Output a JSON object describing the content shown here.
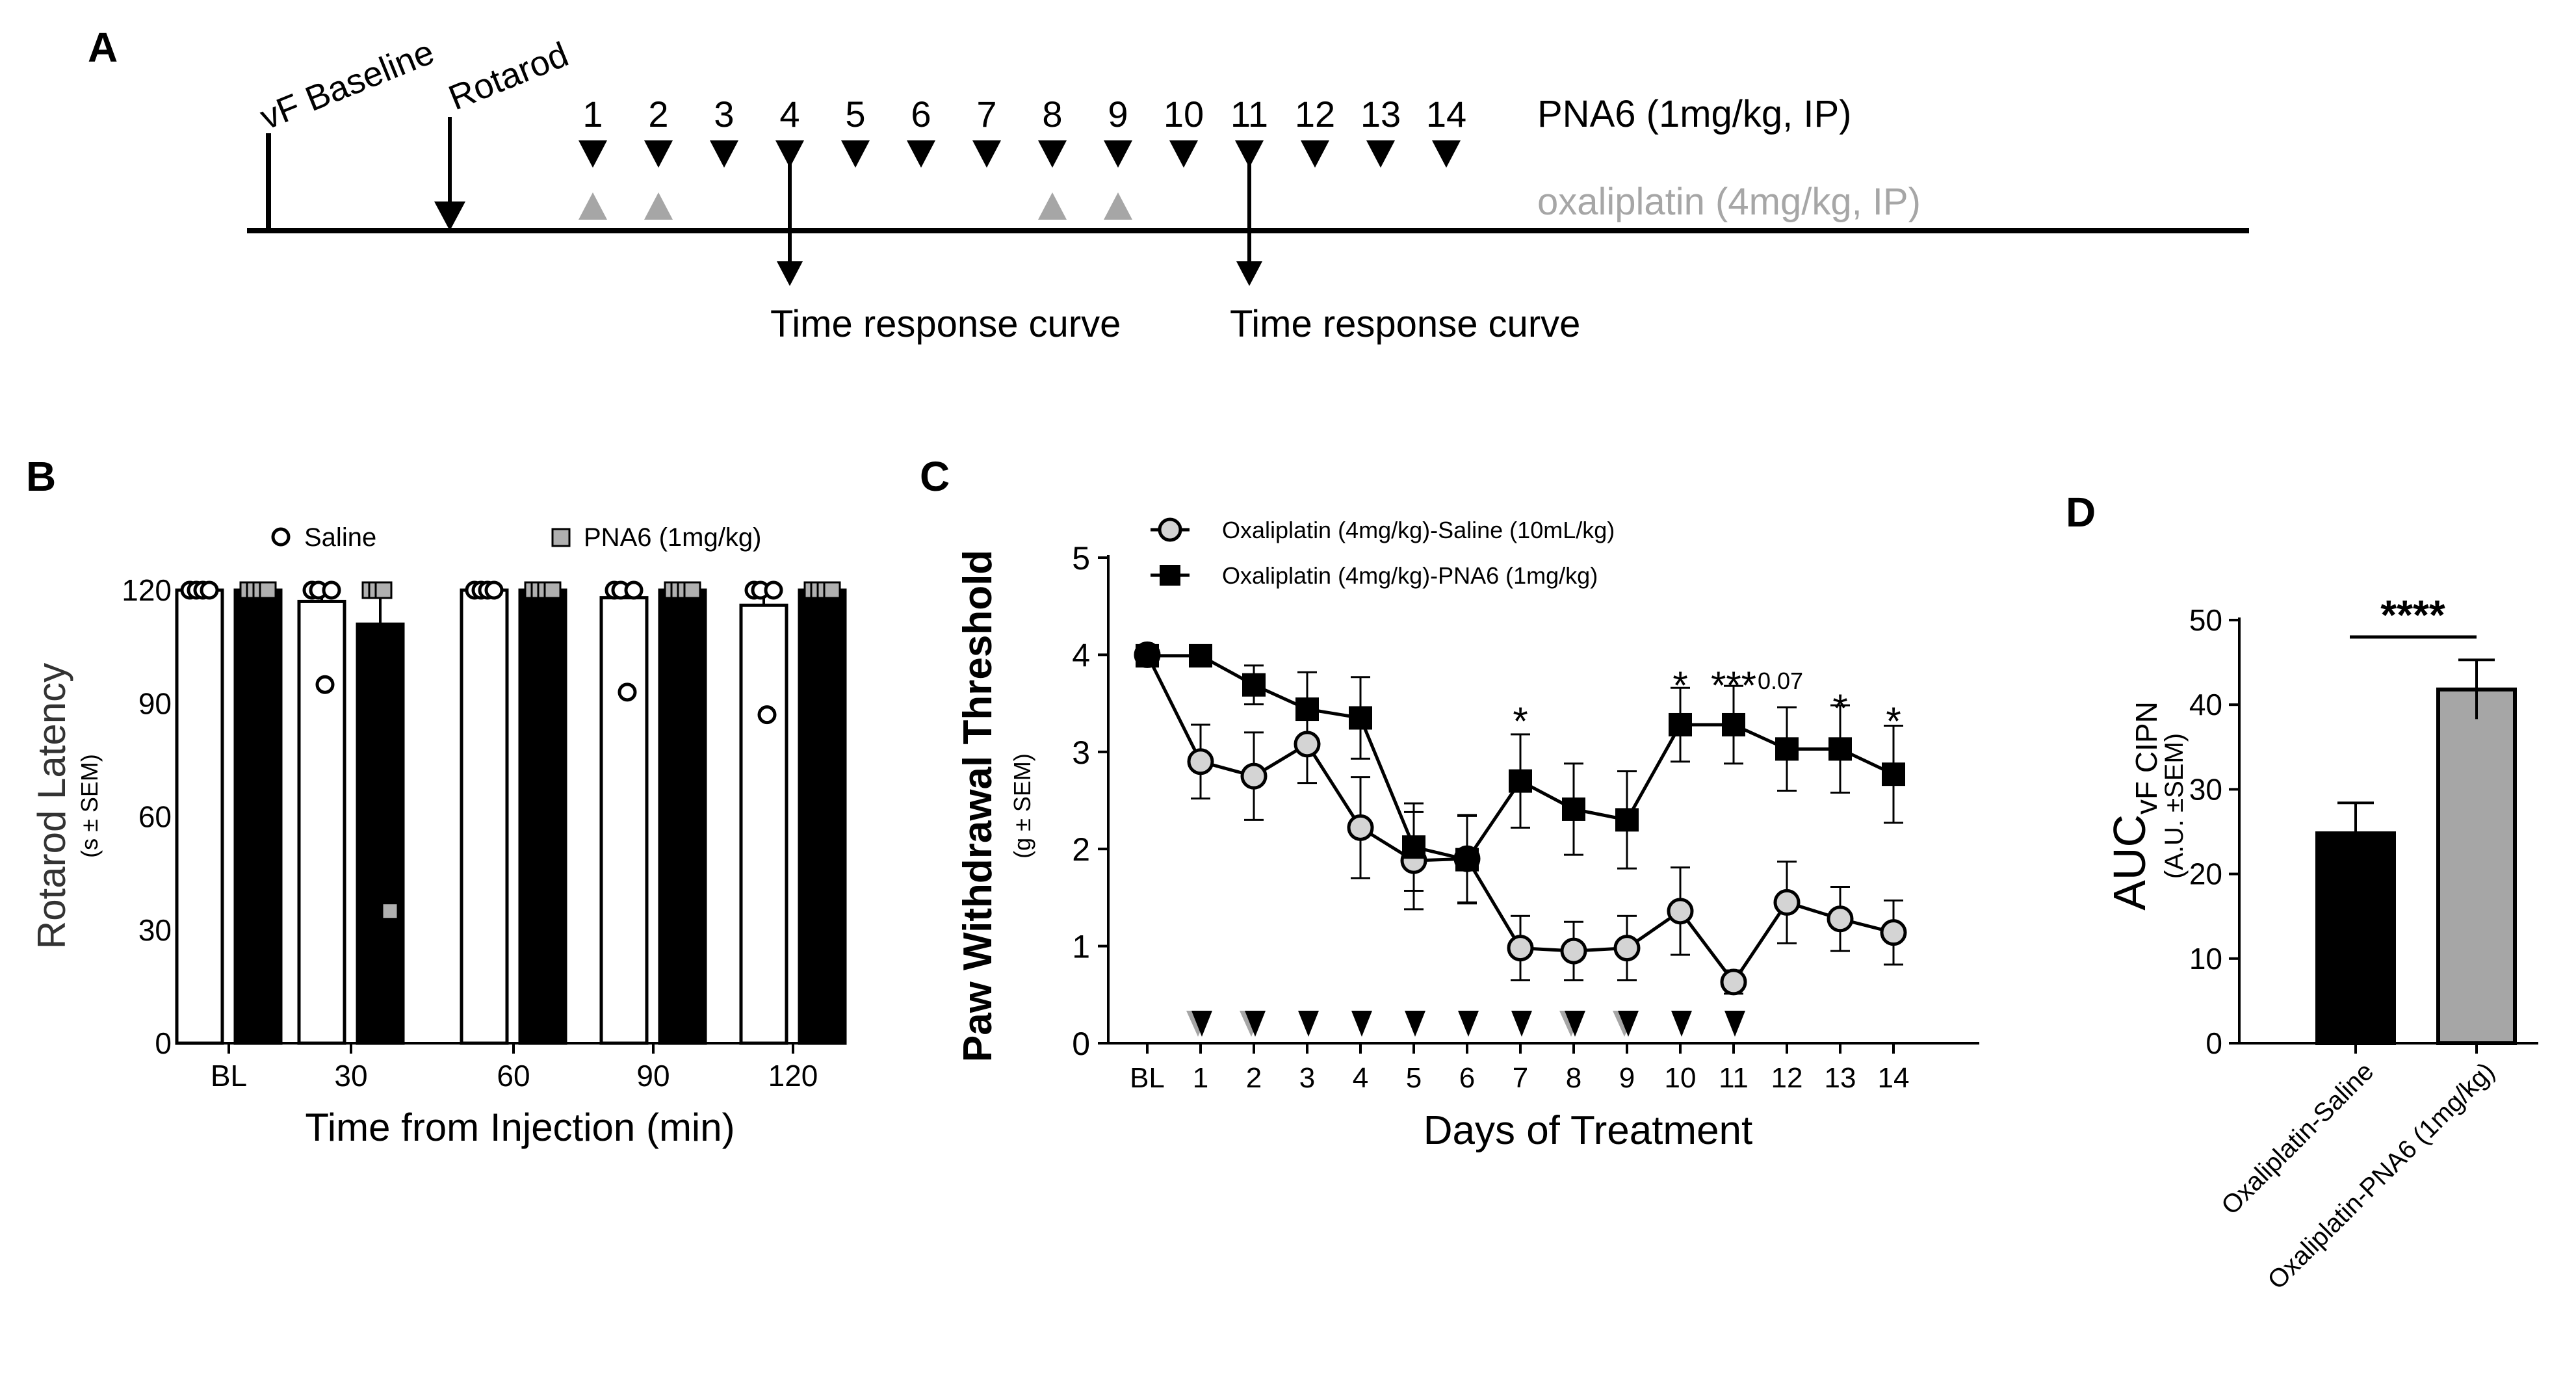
{
  "panel_a": {
    "letter": "A",
    "baseline_label": "vF Baseline",
    "rotarod_label": "Rotarod",
    "days": [
      "1",
      "2",
      "3",
      "4",
      "5",
      "6",
      "7",
      "8",
      "9",
      "10",
      "11",
      "12",
      "13",
      "14"
    ],
    "pna6_label": "PNA6 (1mg/kg, IP)",
    "oxali_label": "oxaliplatin (4mg/kg, IP)",
    "oxali_days": [
      1,
      2,
      8,
      9
    ],
    "trc_days": [
      4,
      11
    ],
    "trc_label": "Time response curve",
    "pna6_color": "#000000",
    "oxali_color": "#a6a6a6"
  },
  "chart_data": [
    {
      "panel": "B",
      "type": "bar",
      "ylabel": "Rotarod Latency",
      "ylabel_unit": "(s ± SEM)",
      "xlabel": "Time from Injection (min)",
      "categories": [
        "BL",
        "30",
        "60",
        "90",
        "120"
      ],
      "ylim": [
        0,
        120
      ],
      "yticks": [
        0,
        30,
        60,
        90,
        120
      ],
      "series": [
        {
          "name": "Saline",
          "values": [
            120,
            117,
            120,
            118,
            116
          ],
          "sem": [
            0,
            3,
            0,
            2,
            3
          ],
          "fill": "#ffffff",
          "points": [
            [
              120,
              120,
              120,
              120
            ],
            [
              120,
              120,
              95,
              120
            ],
            [
              120,
              120,
              120,
              120
            ],
            [
              120,
              120,
              93,
              120
            ],
            [
              120,
              120,
              87,
              120
            ]
          ]
        },
        {
          "name": "PNA6 (1mg/kg)",
          "values": [
            120,
            111,
            120,
            120,
            120
          ],
          "sem": [
            0,
            8,
            0,
            0,
            0
          ],
          "fill": "#000000",
          "points": [
            [
              120,
              120,
              120,
              120
            ],
            [
              120,
              120,
              120,
              35
            ],
            [
              120,
              120,
              120,
              120
            ],
            [
              120,
              120,
              120,
              120
            ],
            [
              120,
              120,
              120,
              120
            ]
          ]
        }
      ]
    },
    {
      "panel": "C",
      "type": "line",
      "ylabel": "Paw Withdrawal Threshold",
      "ylabel_unit": "(g ± SEM)",
      "xlabel": "Days of Treatment",
      "categories": [
        "BL",
        "1",
        "2",
        "3",
        "4",
        "5",
        "6",
        "7",
        "8",
        "9",
        "10",
        "11",
        "12",
        "13",
        "14"
      ],
      "ylim": [
        0,
        5
      ],
      "yticks": [
        0,
        1,
        2,
        3,
        4,
        5
      ],
      "series": [
        {
          "name": "Oxaliplatin  (4mg/kg)-Saline (10mL/kg)",
          "values": [
            4.0,
            2.9,
            2.75,
            3.08,
            2.22,
            1.88,
            1.9,
            0.98,
            0.95,
            0.98,
            1.36,
            0.63,
            1.45,
            1.28,
            1.14
          ],
          "sem": [
            0.05,
            0.38,
            0.45,
            0.4,
            0.52,
            0.5,
            0.45,
            0.33,
            0.3,
            0.33,
            0.45,
            0.12,
            0.42,
            0.33,
            0.33
          ]
        },
        {
          "name": "Oxaliplatin  (4mg/kg)-PNA6 (1mg/kg)",
          "values": [
            3.99,
            3.99,
            3.69,
            3.44,
            3.35,
            2.02,
            1.89,
            2.7,
            2.41,
            2.3,
            3.28,
            3.28,
            3.03,
            3.03,
            2.77
          ],
          "sem": [
            0.05,
            0.05,
            0.2,
            0.38,
            0.42,
            0.45,
            0.45,
            0.48,
            0.47,
            0.5,
            0.38,
            0.4,
            0.43,
            0.45,
            0.5
          ]
        }
      ],
      "annotations": [
        {
          "category": "7",
          "text": "*"
        },
        {
          "category": "10",
          "text": "*"
        },
        {
          "category": "11",
          "text": "***"
        },
        {
          "category": "12",
          "text": "0.07"
        },
        {
          "category": "13",
          "text": "*"
        },
        {
          "category": "14",
          "text": "*"
        }
      ],
      "dose_markers": {
        "black_days": [
          "1",
          "2",
          "3",
          "4",
          "5",
          "6",
          "7",
          "8",
          "9",
          "10",
          "11"
        ],
        "gray_days": [
          "1",
          "2",
          "8",
          "9"
        ]
      }
    },
    {
      "panel": "D",
      "type": "bar",
      "ylabel": "AUC",
      "ylabel_sub": "vF CIPN",
      "ylabel_unit": "(A.U. ±SEM)",
      "categories": [
        "Oxaliplatin-Saline",
        "Oxaliplatin-PNA6 (1mg/kg)"
      ],
      "values": [
        24.8,
        41.8
      ],
      "sem": [
        3.6,
        3.5
      ],
      "colors": [
        "#000000",
        "#a6a6a6"
      ],
      "ylim": [
        0,
        50
      ],
      "yticks": [
        0,
        10,
        20,
        30,
        40,
        50
      ],
      "significance": "****"
    }
  ],
  "letters": {
    "b": "B",
    "c": "C",
    "d": "D"
  }
}
